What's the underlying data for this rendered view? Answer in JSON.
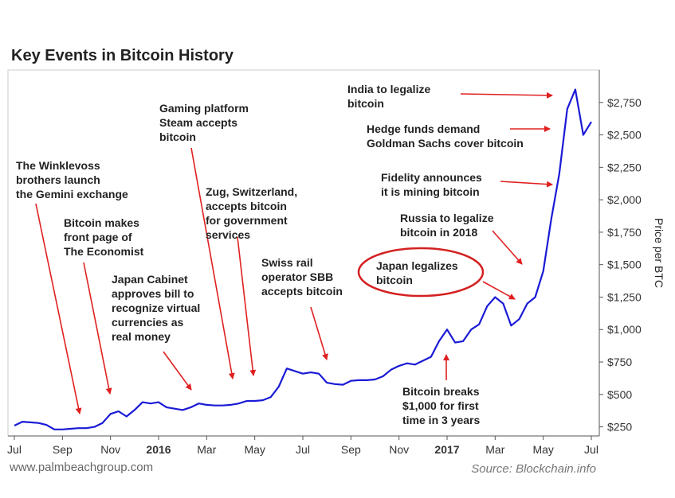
{
  "chart_data": {
    "type": "line",
    "title": "Key Events in Bitcoin History",
    "y_axis_label": "Price per BTC",
    "footer_left": "www.palmbeachgroup.com",
    "source": "Source: Blockchain.info",
    "categories": [
      "Jul",
      null,
      null,
      null,
      null,
      null,
      "Sep",
      null,
      null,
      null,
      null,
      null,
      "Nov",
      null,
      null,
      null,
      null,
      null,
      "2016",
      null,
      null,
      null,
      null,
      null,
      "Mar",
      null,
      null,
      null,
      null,
      null,
      "May",
      null,
      null,
      null,
      null,
      null,
      "Jul",
      null,
      null,
      null,
      null,
      null,
      "Sep",
      null,
      null,
      null,
      null,
      null,
      "Nov",
      null,
      null,
      null,
      null,
      null,
      "2017",
      null,
      null,
      null,
      null,
      null,
      "Mar",
      null,
      null,
      null,
      null,
      null,
      "May",
      null,
      null,
      null,
      null,
      null,
      "Jul"
    ],
    "series": [
      {
        "name": "Price per BTC",
        "color": "#1a1ad6",
        "values": [
          260,
          290,
          285,
          280,
          265,
          230,
          230,
          235,
          240,
          240,
          250,
          280,
          350,
          370,
          330,
          380,
          440,
          430,
          440,
          400,
          390,
          380,
          400,
          430,
          420,
          415,
          415,
          420,
          430,
          450,
          450,
          455,
          480,
          560,
          700,
          680,
          660,
          670,
          660,
          590,
          580,
          575,
          605,
          610,
          610,
          615,
          640,
          690,
          720,
          740,
          730,
          760,
          790,
          910,
          1000,
          900,
          910,
          1000,
          1040,
          1180,
          1250,
          1200,
          1030,
          1080,
          1200,
          1250,
          1450,
          1850,
          2200,
          2700,
          2850,
          2500,
          2600
        ]
      }
    ],
    "ylim": [
      180,
      3000
    ],
    "yticks": [
      {
        "value": 250,
        "label": "$250"
      },
      {
        "value": 500,
        "label": "$500"
      },
      {
        "value": 750,
        "label": "$750"
      },
      {
        "value": 1000,
        "label": "$1,000"
      },
      {
        "value": 1250,
        "label": "$1,250"
      },
      {
        "value": 1500,
        "label": "$1,500"
      },
      {
        "value": 1750,
        "label": "$1,750"
      },
      {
        "value": 2000,
        "label": "$2,000"
      },
      {
        "value": 2250,
        "label": "$2,250"
      },
      {
        "value": 2500,
        "label": "$2,500"
      },
      {
        "value": 2750,
        "label": "$2,750"
      }
    ],
    "annotations": [
      {
        "text": [
          "The Winklevoss",
          "brothers launch",
          "the Gemini exchange"
        ]
      },
      {
        "text": [
          "Bitcoin makes",
          "front page of",
          "The Economist"
        ]
      },
      {
        "text": [
          "Japan Cabinet",
          "approves bill to",
          "recognize virtual",
          "currencies as",
          "real money"
        ]
      },
      {
        "text": [
          "Gaming platform",
          "Steam accepts",
          "bitcoin"
        ]
      },
      {
        "text": [
          "Zug, Switzerland,",
          "accepts bitcoin",
          "for government",
          "services"
        ]
      },
      {
        "text": [
          "Swiss rail",
          "operator SBB",
          "accepts bitcoin"
        ]
      },
      {
        "text": [
          "Bitcoin breaks",
          "$1,000 for first",
          "time in 3 years"
        ]
      },
      {
        "text": [
          "Japan legalizes",
          "bitcoin"
        ]
      },
      {
        "text": [
          "Russia to legalize",
          "bitcoin in 2018"
        ]
      },
      {
        "text": [
          "Fidelity announces",
          "it is mining bitcoin"
        ]
      },
      {
        "text": [
          "Hedge funds demand",
          "Goldman Sachs cover bitcoin"
        ]
      },
      {
        "text": [
          "India to legalize",
          "bitcoin"
        ]
      }
    ]
  }
}
